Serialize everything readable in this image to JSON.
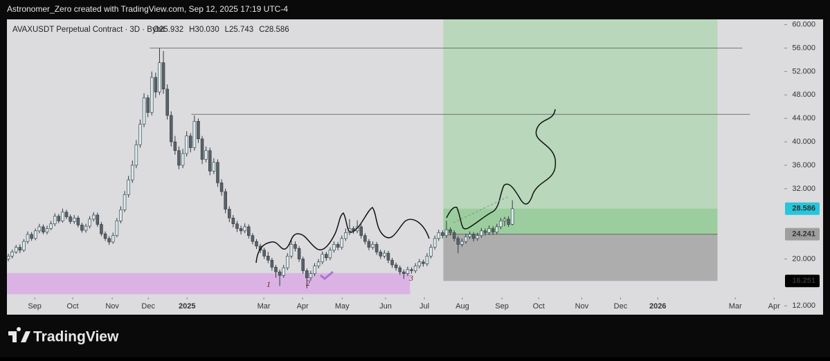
{
  "header": "Astronomer_Zero created with TradingView.com, Sep 12, 2025 17:19 UTC-4",
  "brand": "TradingView",
  "chart_data": {
    "type": "candlestick",
    "symbol": "AVAXUSDT Perpetual Contract · 3D · Bybit",
    "legend_values": [
      "O25.932",
      "H30.030",
      "L25.743",
      "C28.586"
    ],
    "up_color": "#d9eaec",
    "down_color": "#5b6168",
    "outline_color": "#2f3a40",
    "xlim": [
      -0.36,
      199.6
    ],
    "xticks": [
      {
        "value": 6.8,
        "label": "Sep"
      },
      {
        "value": 16.6,
        "label": "Oct"
      },
      {
        "value": 26.8,
        "label": "Nov"
      },
      {
        "value": 36.1,
        "label": "Dec"
      },
      {
        "value": 46.1,
        "label": "2025"
      },
      {
        "value": 65.9,
        "label": "Mar"
      },
      {
        "value": 75.9,
        "label": "Apr"
      },
      {
        "value": 86.1,
        "label": "May"
      },
      {
        "value": 97.3,
        "label": "Jun"
      },
      {
        "value": 107.3,
        "label": "Jul"
      },
      {
        "value": 117.1,
        "label": "Aug"
      },
      {
        "value": 127.3,
        "label": "Sep"
      },
      {
        "value": 136.8,
        "label": "Oct"
      },
      {
        "value": 147.9,
        "label": "Nov"
      },
      {
        "value": 157.9,
        "label": "Dec"
      },
      {
        "value": 167.5,
        "label": "2026"
      },
      {
        "value": 187.5,
        "label": "Mar"
      },
      {
        "value": 197.5,
        "label": "Apr"
      }
    ],
    "ylim": [
      10.5,
      60.9
    ],
    "yticks": [
      {
        "value": 60,
        "label": "60.000"
      },
      {
        "value": 56,
        "label": "56.000"
      },
      {
        "value": 52,
        "label": "52.000"
      },
      {
        "value": 48,
        "label": "48.000"
      },
      {
        "value": 44,
        "label": "44.000"
      },
      {
        "value": 40,
        "label": "40.000"
      },
      {
        "value": 36,
        "label": "36.000"
      },
      {
        "value": 32,
        "label": "32.000"
      },
      {
        "value": 20,
        "label": "20.000"
      },
      {
        "value": 12,
        "label": "12.000"
      }
    ],
    "price_labels": [
      28.586,
      24.241,
      16.251
    ],
    "price_label_colors": [
      "#26c6da",
      "#9e9e9e",
      "#000000"
    ],
    "horizontal_lines": [
      {
        "value": 56.0,
        "from": 36.5,
        "to": 189.3
      },
      {
        "value": 44.7,
        "from": 47.2,
        "to": 191.3
      }
    ],
    "position": {
      "from": 112.2,
      "to": 182.9,
      "entry": 24.241,
      "target": 60.9,
      "stop": 16.251,
      "current": 28.586
    },
    "zone": {
      "from": -0.36,
      "to": 103.6,
      "low": 14.0,
      "high": 17.6,
      "color": "#d9a6e6"
    },
    "annotations": [
      "1",
      "2",
      "3"
    ],
    "ohlc": [
      [
        20.0,
        20.9,
        19.6,
        20.5
      ],
      [
        20.5,
        21.6,
        20.1,
        21.2
      ],
      [
        21.2,
        22.4,
        20.9,
        22.0
      ],
      [
        22.0,
        22.5,
        21.0,
        21.5
      ],
      [
        21.5,
        23.4,
        21.2,
        23.0
      ],
      [
        23.0,
        24.7,
        22.6,
        24.2
      ],
      [
        24.2,
        24.6,
        23.1,
        23.5
      ],
      [
        23.5,
        25.2,
        23.2,
        24.8
      ],
      [
        24.8,
        26.0,
        24.4,
        25.5
      ],
      [
        25.5,
        25.9,
        24.2,
        24.6
      ],
      [
        24.6,
        25.7,
        24.2,
        25.2
      ],
      [
        25.2,
        26.5,
        24.9,
        26.0
      ],
      [
        26.0,
        27.8,
        25.6,
        27.3
      ],
      [
        27.3,
        27.7,
        26.1,
        26.5
      ],
      [
        26.5,
        28.6,
        26.2,
        28.0
      ],
      [
        28.0,
        28.4,
        26.8,
        27.2
      ],
      [
        27.2,
        27.6,
        26.0,
        26.4
      ],
      [
        26.4,
        27.5,
        26.0,
        27.0
      ],
      [
        27.0,
        27.4,
        25.4,
        25.8
      ],
      [
        25.8,
        26.2,
        24.5,
        24.9
      ],
      [
        24.9,
        26.0,
        24.5,
        25.6
      ],
      [
        25.6,
        27.3,
        25.2,
        26.8
      ],
      [
        26.8,
        28.0,
        26.4,
        27.5
      ],
      [
        27.5,
        27.9,
        25.5,
        25.9
      ],
      [
        25.9,
        26.3,
        23.9,
        24.3
      ],
      [
        24.3,
        24.7,
        23.1,
        23.5
      ],
      [
        23.5,
        23.9,
        22.4,
        22.9
      ],
      [
        22.9,
        24.5,
        22.6,
        24.0
      ],
      [
        24.0,
        27.0,
        23.7,
        26.5
      ],
      [
        26.5,
        29.0,
        26.1,
        28.4
      ],
      [
        28.4,
        31.6,
        28.0,
        31.0
      ],
      [
        31.0,
        34.2,
        30.5,
        33.5
      ],
      [
        33.5,
        36.8,
        33.0,
        36.0
      ],
      [
        36.0,
        40.3,
        35.5,
        39.5
      ],
      [
        39.5,
        43.8,
        39.0,
        43.0
      ],
      [
        43.0,
        48.3,
        42.5,
        47.5
      ],
      [
        47.5,
        48.0,
        44.2,
        45.0
      ],
      [
        45.0,
        52.0,
        44.5,
        51.0
      ],
      [
        51.0,
        51.8,
        47.5,
        48.5
      ],
      [
        48.5,
        56.0,
        48.0,
        53.5
      ],
      [
        53.5,
        55.5,
        48.2,
        49.0
      ],
      [
        49.0,
        49.8,
        43.8,
        44.5
      ],
      [
        44.5,
        45.2,
        39.2,
        40.0
      ],
      [
        40.0,
        41.0,
        37.8,
        38.5
      ],
      [
        38.5,
        39.2,
        35.3,
        36.0
      ],
      [
        36.0,
        38.8,
        35.5,
        38.0
      ],
      [
        38.0,
        41.8,
        37.5,
        41.0
      ],
      [
        41.0,
        41.5,
        38.2,
        39.0
      ],
      [
        39.0,
        44.5,
        38.5,
        43.5
      ],
      [
        43.5,
        44.0,
        39.8,
        40.5
      ],
      [
        40.5,
        41.0,
        36.2,
        37.0
      ],
      [
        37.0,
        39.2,
        36.5,
        38.5
      ],
      [
        38.5,
        39.0,
        34.3,
        35.0
      ],
      [
        35.0,
        37.2,
        34.5,
        36.5
      ],
      [
        36.5,
        37.0,
        32.3,
        33.0
      ],
      [
        33.0,
        33.6,
        30.8,
        31.5
      ],
      [
        31.5,
        32.0,
        27.8,
        28.5
      ],
      [
        28.5,
        29.0,
        26.3,
        27.0
      ],
      [
        27.0,
        27.5,
        25.4,
        26.0
      ],
      [
        26.0,
        26.5,
        24.6,
        25.2
      ],
      [
        25.2,
        25.7,
        24.2,
        24.8
      ],
      [
        24.8,
        26.1,
        24.4,
        25.5
      ],
      [
        25.5,
        25.9,
        23.5,
        24.0
      ],
      [
        24.0,
        24.4,
        22.5,
        23.0
      ],
      [
        23.0,
        23.4,
        21.7,
        22.2
      ],
      [
        22.2,
        22.6,
        21.0,
        21.5
      ],
      [
        21.5,
        21.9,
        20.0,
        20.5
      ],
      [
        20.5,
        21.2,
        19.3,
        19.8
      ],
      [
        19.8,
        20.2,
        18.0,
        18.6
      ],
      [
        18.6,
        19.0,
        16.8,
        17.8
      ],
      [
        17.8,
        18.2,
        15.4,
        17.2
      ],
      [
        17.2,
        19.0,
        16.8,
        18.5
      ],
      [
        18.5,
        21.0,
        18.1,
        20.5
      ],
      [
        20.5,
        23.2,
        20.1,
        22.5
      ],
      [
        22.5,
        23.0,
        21.3,
        21.8
      ],
      [
        21.8,
        22.2,
        19.5,
        20.0
      ],
      [
        20.0,
        20.4,
        17.5,
        18.0
      ],
      [
        18.0,
        18.4,
        15.0,
        16.8
      ],
      [
        16.8,
        18.0,
        16.3,
        17.5
      ],
      [
        17.5,
        19.3,
        17.1,
        18.8
      ],
      [
        18.8,
        20.0,
        18.4,
        19.5
      ],
      [
        19.5,
        21.3,
        19.1,
        20.8
      ],
      [
        20.8,
        21.2,
        19.7,
        20.2
      ],
      [
        20.2,
        22.0,
        19.8,
        21.5
      ],
      [
        21.5,
        23.0,
        21.1,
        22.5
      ],
      [
        22.5,
        22.9,
        21.5,
        22.0
      ],
      [
        22.0,
        24.0,
        21.6,
        23.5
      ],
      [
        23.5,
        25.2,
        23.1,
        24.5
      ],
      [
        24.5,
        26.8,
        24.1,
        25.2
      ],
      [
        25.2,
        25.6,
        24.3,
        24.8
      ],
      [
        24.8,
        26.6,
        24.4,
        25.5
      ],
      [
        25.5,
        25.9,
        23.5,
        24.0
      ],
      [
        24.0,
        24.4,
        22.5,
        23.0
      ],
      [
        23.0,
        23.4,
        21.5,
        22.0
      ],
      [
        22.0,
        23.0,
        21.6,
        22.5
      ],
      [
        22.5,
        22.9,
        20.7,
        21.2
      ],
      [
        21.2,
        21.6,
        20.0,
        20.5
      ],
      [
        20.5,
        21.5,
        20.1,
        21.0
      ],
      [
        21.0,
        21.4,
        19.3,
        19.8
      ],
      [
        19.8,
        20.2,
        18.5,
        19.0
      ],
      [
        19.0,
        19.4,
        18.0,
        18.5
      ],
      [
        18.5,
        18.9,
        17.3,
        17.8
      ],
      [
        17.8,
        18.2,
        16.6,
        17.5
      ],
      [
        17.5,
        18.7,
        17.1,
        18.2
      ],
      [
        18.2,
        18.6,
        17.5,
        18.0
      ],
      [
        18.0,
        19.3,
        17.6,
        18.8
      ],
      [
        18.8,
        20.0,
        18.4,
        19.5
      ],
      [
        19.5,
        19.9,
        18.7,
        19.2
      ],
      [
        19.2,
        21.0,
        18.8,
        20.5
      ],
      [
        20.5,
        22.5,
        20.1,
        22.0
      ],
      [
        22.0,
        24.0,
        21.6,
        23.5
      ],
      [
        23.5,
        25.0,
        23.1,
        24.5
      ],
      [
        24.5,
        24.9,
        23.5,
        24.0
      ],
      [
        24.0,
        26.5,
        23.6,
        25.0
      ],
      [
        25.0,
        25.4,
        24.0,
        24.5
      ],
      [
        24.5,
        24.9,
        23.0,
        23.5
      ],
      [
        23.5,
        23.9,
        21.0,
        22.5
      ],
      [
        22.5,
        23.5,
        22.1,
        23.0
      ],
      [
        23.0,
        24.3,
        22.6,
        23.8
      ],
      [
        23.8,
        24.7,
        23.4,
        24.2
      ],
      [
        24.2,
        24.6,
        23.0,
        23.5
      ],
      [
        23.5,
        24.5,
        23.1,
        24.0
      ],
      [
        24.0,
        25.3,
        23.6,
        24.8
      ],
      [
        24.8,
        25.2,
        24.0,
        24.5
      ],
      [
        24.5,
        25.7,
        24.1,
        25.2
      ],
      [
        25.2,
        25.6,
        24.1,
        24.6
      ],
      [
        24.6,
        26.0,
        24.2,
        25.5
      ],
      [
        25.5,
        27.0,
        25.1,
        26.5
      ],
      [
        26.5,
        27.2,
        25.6,
        26.8
      ],
      [
        26.8,
        27.3,
        25.5,
        25.9
      ],
      [
        25.932,
        30.03,
        25.743,
        28.586
      ]
    ]
  }
}
